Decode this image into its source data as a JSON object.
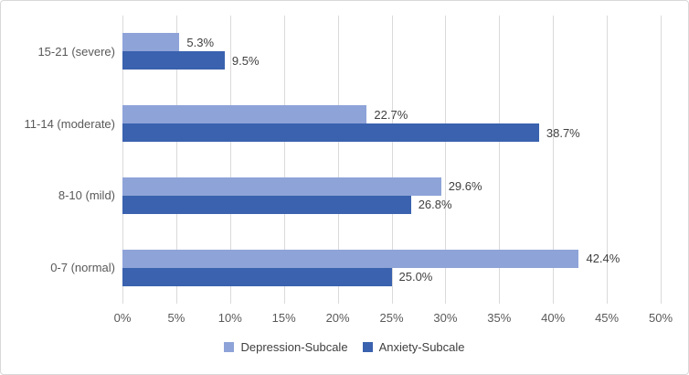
{
  "chart_data": {
    "type": "bar",
    "orientation": "horizontal",
    "title": "",
    "categories": [
      "15-21 (severe)",
      "11-14 (moderate)",
      "8-10 (mild)",
      "0-7 (normal)"
    ],
    "series": [
      {
        "name": "Depression-Subcale",
        "color": "#8EA3D8",
        "values": [
          5.3,
          22.7,
          29.6,
          42.4
        ],
        "data_labels": [
          "5.3%",
          "22.7%",
          "29.6%",
          "42.4%"
        ]
      },
      {
        "name": "Anxiety-Subcale",
        "color": "#3A62AE",
        "values": [
          9.5,
          38.7,
          26.8,
          25.0
        ],
        "data_labels": [
          "9.5%",
          "38.7%",
          "26.8%",
          "25.0%"
        ]
      }
    ],
    "xlim": [
      0,
      50
    ],
    "x_tick_labels": [
      "0%",
      "5%",
      "10%",
      "15%",
      "20%",
      "25%",
      "30%",
      "35%",
      "40%",
      "45%",
      "50%"
    ],
    "grid": true,
    "legend_position": "bottom"
  },
  "colors": {
    "background": "#FFFFFF",
    "border": "#D8D8D8",
    "grid_line": "#DADADA",
    "axis_text": "#595959",
    "data_label_text": "#404040",
    "legend_text": "#404040"
  }
}
